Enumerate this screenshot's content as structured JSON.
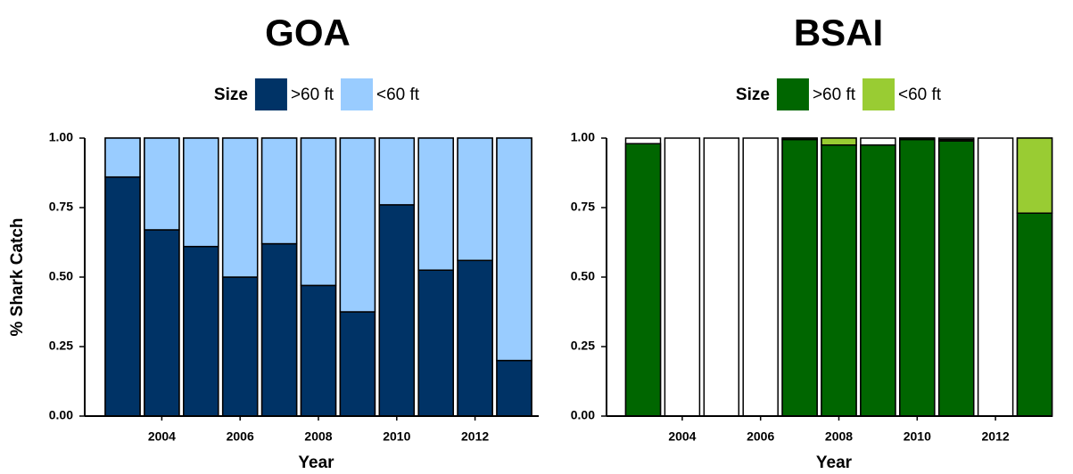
{
  "chart_data": [
    {
      "type": "bar",
      "stacked": true,
      "title": "GOA",
      "legend_title": "Size",
      "xlabel": "Year",
      "ylabel": "% Shark Catch",
      "categories": [
        null,
        "2004",
        null,
        "2006",
        null,
        "2008",
        null,
        "2010",
        null,
        "2012",
        null
      ],
      "series": [
        {
          "name": ">60 ft",
          "color": "#003366",
          "values": [
            0.86,
            0.67,
            0.61,
            0.5,
            0.62,
            0.47,
            0.375,
            0.76,
            0.525,
            0.56,
            0.2
          ]
        },
        {
          "name": "<60 ft",
          "color": "#99ccff",
          "values": [
            0.14,
            0.33,
            0.39,
            0.5,
            0.38,
            0.53,
            0.625,
            0.24,
            0.475,
            0.44,
            0.8
          ]
        }
      ],
      "ylim": [
        0,
        1
      ],
      "yticks": [
        {
          "value": 0,
          "label": "0.00"
        },
        {
          "value": 0.25,
          "label": "0.25"
        },
        {
          "value": 0.5,
          "label": "0.50"
        },
        {
          "value": 0.75,
          "label": "0.75"
        },
        {
          "value": 1,
          "label": "1.00"
        }
      ]
    },
    {
      "type": "bar",
      "stacked": true,
      "title": "BSAI",
      "legend_title": "Size",
      "xlabel": "Year",
      "categories": [
        null,
        "2004",
        null,
        "2006",
        null,
        "2008",
        null,
        "2010",
        null,
        "2012",
        null
      ],
      "series": [
        {
          "name": ">60 ft",
          "color": "#006600",
          "values": [
            0.98,
            null,
            null,
            null,
            0.995,
            0.975,
            0.975,
            0.995,
            0.99,
            null,
            0.73
          ]
        },
        {
          "name": "<60 ft",
          "color": "#99cc33",
          "values": [
            0,
            null,
            null,
            null,
            0.005,
            0.025,
            0,
            0.005,
            0.005,
            null,
            0.27
          ]
        }
      ],
      "ylim": [
        0,
        1
      ],
      "yticks": [
        {
          "value": 0,
          "label": "0.00"
        },
        {
          "value": 0.25,
          "label": "0.25"
        },
        {
          "value": 0.5,
          "label": "0.50"
        },
        {
          "value": 0.75,
          "label": "0.75"
        },
        {
          "value": 1,
          "label": "1.00"
        }
      ]
    }
  ]
}
